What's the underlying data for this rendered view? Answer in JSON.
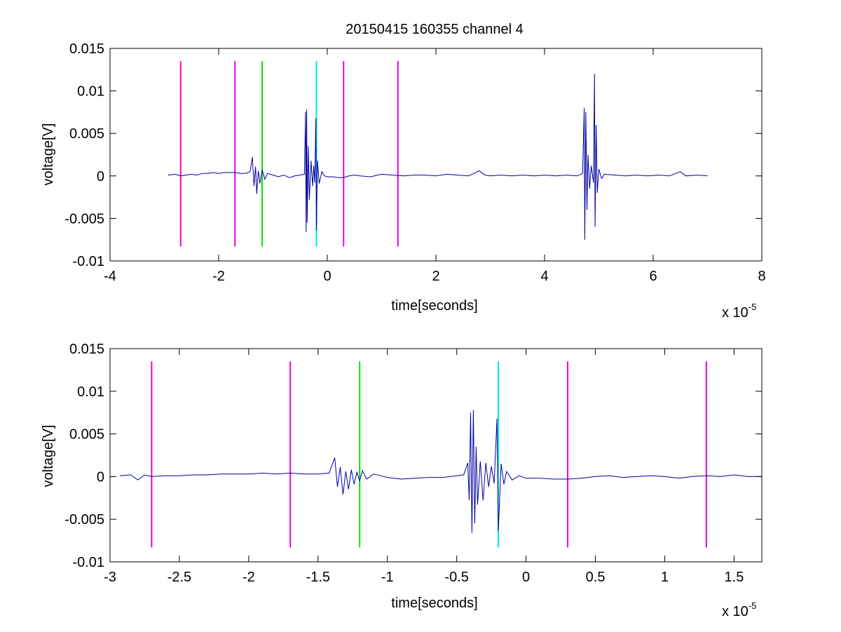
{
  "figure_title": "20150415 160355 channel 4",
  "chart_data": [
    {
      "type": "line",
      "title": "20150415 160355 channel 4",
      "xlabel": "time[seconds]",
      "ylabel": "voltage[V]",
      "x_exponent_label": "x 10",
      "x_exponent": "-5",
      "xlim": [
        -4,
        8
      ],
      "ylim": [
        -0.01,
        0.015
      ],
      "x_scale": "1e-5",
      "xticks": [
        -4,
        -2,
        0,
        2,
        4,
        6,
        8
      ],
      "xtick_labels": [
        "-4",
        "-2",
        "0",
        "2",
        "4",
        "6",
        "8"
      ],
      "yticks": [
        -0.01,
        -0.005,
        0,
        0.005,
        0.01,
        0.015
      ],
      "ytick_labels": [
        "-0.01",
        "-0.005",
        "0",
        "0.005",
        "0.01",
        "0.015"
      ],
      "grid": false,
      "signal": {
        "color": "#0000a0",
        "points": [
          [
            -2.93,
            0.0001
          ],
          [
            -2.8,
            0.0002
          ],
          [
            -2.7,
            0.0
          ],
          [
            -2.6,
            0.0001
          ],
          [
            -2.5,
            0.0002
          ],
          [
            -2.4,
            0.0001
          ],
          [
            -2.3,
            0.0003
          ],
          [
            -2.2,
            0.0003
          ],
          [
            -2.1,
            0.0004
          ],
          [
            -2.0,
            0.0003
          ],
          [
            -1.9,
            0.0004
          ],
          [
            -1.8,
            0.0004
          ],
          [
            -1.7,
            0.0004
          ],
          [
            -1.6,
            0.0003
          ],
          [
            -1.5,
            0.0003
          ],
          [
            -1.42,
            0.0005
          ],
          [
            -1.38,
            0.0022
          ],
          [
            -1.35,
            -0.0012
          ],
          [
            -1.32,
            0.0011
          ],
          [
            -1.3,
            -0.0021
          ],
          [
            -1.27,
            0.0006
          ],
          [
            -1.24,
            -0.0009
          ],
          [
            -1.2,
            0.0007
          ],
          [
            -1.15,
            -0.0004
          ],
          [
            -1.1,
            0.0003
          ],
          [
            -1.0,
            0.0001
          ],
          [
            -0.9,
            -0.0001
          ],
          [
            -0.8,
            0.0001
          ],
          [
            -0.7,
            -0.0002
          ],
          [
            -0.6,
            0.0
          ],
          [
            -0.5,
            0.0001
          ],
          [
            -0.42,
            0.0002
          ],
          [
            -0.4,
            0.0075
          ],
          [
            -0.39,
            -0.0066
          ],
          [
            -0.38,
            0.0078
          ],
          [
            -0.37,
            -0.0055
          ],
          [
            -0.35,
            0.0035
          ],
          [
            -0.33,
            -0.0028
          ],
          [
            -0.3,
            0.0018
          ],
          [
            -0.27,
            -0.0012
          ],
          [
            -0.25,
            0.0012
          ],
          [
            -0.23,
            -0.0008
          ],
          [
            -0.21,
            0.0068
          ],
          [
            -0.2,
            -0.0064
          ],
          [
            -0.18,
            0.0018
          ],
          [
            -0.15,
            -0.0009
          ],
          [
            -0.1,
            0.0005
          ],
          [
            -0.05,
            0.0
          ],
          [
            0.0,
            -0.0001
          ],
          [
            0.1,
            -0.0001
          ],
          [
            0.2,
            -0.0002
          ],
          [
            0.3,
            -0.0002
          ],
          [
            0.4,
            0.0
          ],
          [
            0.5,
            0.0001
          ],
          [
            0.6,
            0.0
          ],
          [
            0.8,
            -0.0001
          ],
          [
            1.0,
            0.0002
          ],
          [
            1.2,
            0.0001
          ],
          [
            1.4,
            0.0
          ],
          [
            1.6,
            0.0001
          ],
          [
            1.8,
            0.0001
          ],
          [
            2.0,
            0.0
          ],
          [
            2.2,
            0.0002
          ],
          [
            2.4,
            0.0001
          ],
          [
            2.6,
            0.0
          ],
          [
            2.8,
            0.0006
          ],
          [
            2.9,
            0.0001
          ],
          [
            3.0,
            0.0
          ],
          [
            3.2,
            0.0001
          ],
          [
            3.4,
            0.0
          ],
          [
            3.6,
            0.0001
          ],
          [
            3.8,
            0.0
          ],
          [
            4.0,
            0.0001
          ],
          [
            4.2,
            0.0
          ],
          [
            4.4,
            0.0001
          ],
          [
            4.6,
            0.0
          ],
          [
            4.7,
            0.0003
          ],
          [
            4.73,
            0.008
          ],
          [
            4.74,
            -0.0075
          ],
          [
            4.76,
            0.0075
          ],
          [
            4.78,
            -0.004
          ],
          [
            4.8,
            0.0025
          ],
          [
            4.83,
            -0.0015
          ],
          [
            4.86,
            0.0012
          ],
          [
            4.9,
            -0.0008
          ],
          [
            4.92,
            0.012
          ],
          [
            4.93,
            -0.006
          ],
          [
            4.95,
            0.006
          ],
          [
            4.97,
            -0.002
          ],
          [
            5.0,
            0.0008
          ],
          [
            5.05,
            -0.0003
          ],
          [
            5.1,
            0.0002
          ],
          [
            5.3,
            0.0001
          ],
          [
            5.5,
            0.0
          ],
          [
            5.7,
            0.0001
          ],
          [
            5.9,
            0.0
          ],
          [
            6.1,
            0.0001
          ],
          [
            6.3,
            0.0
          ],
          [
            6.5,
            0.0005
          ],
          [
            6.6,
            0.0
          ],
          [
            6.8,
            0.0001
          ],
          [
            7.0,
            0.0
          ]
        ]
      },
      "markers": [
        {
          "x": -2.7,
          "color": "#e600e6"
        },
        {
          "x": -1.7,
          "color": "#e600e6"
        },
        {
          "x": -1.2,
          "color": "#00e600"
        },
        {
          "x": -0.2,
          "color": "#00e6e6"
        },
        {
          "x": 0.3,
          "color": "#e600e6"
        },
        {
          "x": 1.3,
          "color": "#e600e6"
        }
      ],
      "marker_y_range": [
        -0.0083,
        0.0135
      ]
    },
    {
      "type": "line",
      "title": "",
      "xlabel": "time[seconds]",
      "ylabel": "voltage[V]",
      "x_exponent_label": "x 10",
      "x_exponent": "-5",
      "xlim": [
        -3.0,
        1.7
      ],
      "ylim": [
        -0.01,
        0.015
      ],
      "x_scale": "1e-5",
      "xticks": [
        -3,
        -2.5,
        -2,
        -1.5,
        -1,
        -0.5,
        0,
        0.5,
        1,
        1.5
      ],
      "xtick_labels": [
        "-3",
        "-2.5",
        "-2",
        "-1.5",
        "-1",
        "-0.5",
        "0",
        "0.5",
        "1",
        "1.5"
      ],
      "yticks": [
        -0.01,
        -0.005,
        0,
        0.005,
        0.01,
        0.015
      ],
      "ytick_labels": [
        "-0.01",
        "-0.005",
        "0",
        "0.005",
        "0.01",
        "0.015"
      ],
      "grid": false,
      "signal": {
        "color": "#0000a0",
        "points": [
          [
            -2.93,
            0.0001
          ],
          [
            -2.85,
            0.0002
          ],
          [
            -2.8,
            -0.0004
          ],
          [
            -2.75,
            0.0002
          ],
          [
            -2.7,
            0.0
          ],
          [
            -2.6,
            0.0001
          ],
          [
            -2.5,
            0.0001
          ],
          [
            -2.4,
            0.0002
          ],
          [
            -2.3,
            0.0002
          ],
          [
            -2.2,
            0.0003
          ],
          [
            -2.1,
            0.0003
          ],
          [
            -2.0,
            0.0003
          ],
          [
            -1.9,
            0.0004
          ],
          [
            -1.8,
            0.0003
          ],
          [
            -1.7,
            0.0004
          ],
          [
            -1.6,
            0.0003
          ],
          [
            -1.5,
            0.0003
          ],
          [
            -1.42,
            0.0004
          ],
          [
            -1.38,
            0.0022
          ],
          [
            -1.36,
            -0.0012
          ],
          [
            -1.34,
            0.0011
          ],
          [
            -1.32,
            -0.0021
          ],
          [
            -1.3,
            0.0006
          ],
          [
            -1.28,
            -0.0015
          ],
          [
            -1.26,
            0.0008
          ],
          [
            -1.24,
            -0.0009
          ],
          [
            -1.22,
            0.0005
          ],
          [
            -1.2,
            -0.0005
          ],
          [
            -1.18,
            0.0007
          ],
          [
            -1.15,
            -0.0003
          ],
          [
            -1.1,
            0.0003
          ],
          [
            -1.05,
            0.0001
          ],
          [
            -1.0,
            -0.0001
          ],
          [
            -0.9,
            -0.0003
          ],
          [
            -0.8,
            -0.0002
          ],
          [
            -0.7,
            -0.0001
          ],
          [
            -0.6,
            -0.0001
          ],
          [
            -0.5,
            0.0001
          ],
          [
            -0.45,
            0.0002
          ],
          [
            -0.42,
            0.0016
          ],
          [
            -0.41,
            -0.0028
          ],
          [
            -0.4,
            0.0075
          ],
          [
            -0.39,
            -0.0066
          ],
          [
            -0.38,
            0.0078
          ],
          [
            -0.37,
            -0.0055
          ],
          [
            -0.36,
            0.0035
          ],
          [
            -0.35,
            -0.0033
          ],
          [
            -0.33,
            0.0018
          ],
          [
            -0.31,
            -0.0028
          ],
          [
            -0.29,
            0.0016
          ],
          [
            -0.27,
            -0.0012
          ],
          [
            -0.25,
            0.0012
          ],
          [
            -0.23,
            -0.0008
          ],
          [
            -0.21,
            0.0068
          ],
          [
            -0.2,
            -0.0064
          ],
          [
            -0.18,
            0.0015
          ],
          [
            -0.16,
            -0.0009
          ],
          [
            -0.14,
            0.0006
          ],
          [
            -0.1,
            -0.0004
          ],
          [
            -0.05,
            0.0001
          ],
          [
            0.0,
            -0.0002
          ],
          [
            0.1,
            -0.0002
          ],
          [
            0.2,
            -0.0003
          ],
          [
            0.3,
            -0.0003
          ],
          [
            0.4,
            -0.0002
          ],
          [
            0.5,
            0.0
          ],
          [
            0.6,
            0.0001
          ],
          [
            0.7,
            -0.0001
          ],
          [
            0.8,
            0.0
          ],
          [
            0.9,
            0.0001
          ],
          [
            1.0,
            0.0
          ],
          [
            1.1,
            -0.0002
          ],
          [
            1.2,
            0.0
          ],
          [
            1.3,
            0.0001
          ],
          [
            1.4,
            0.0
          ],
          [
            1.5,
            0.0002
          ],
          [
            1.6,
            0.0
          ],
          [
            1.7,
            0.0
          ]
        ]
      },
      "markers": [
        {
          "x": -2.7,
          "color": "#e600e6"
        },
        {
          "x": -1.7,
          "color": "#e600e6"
        },
        {
          "x": -1.2,
          "color": "#00e600"
        },
        {
          "x": -0.2,
          "color": "#00e6e6"
        },
        {
          "x": 0.3,
          "color": "#e600e6"
        },
        {
          "x": 1.3,
          "color": "#e600e6"
        }
      ],
      "marker_y_range": [
        -0.0083,
        0.0135
      ]
    }
  ]
}
